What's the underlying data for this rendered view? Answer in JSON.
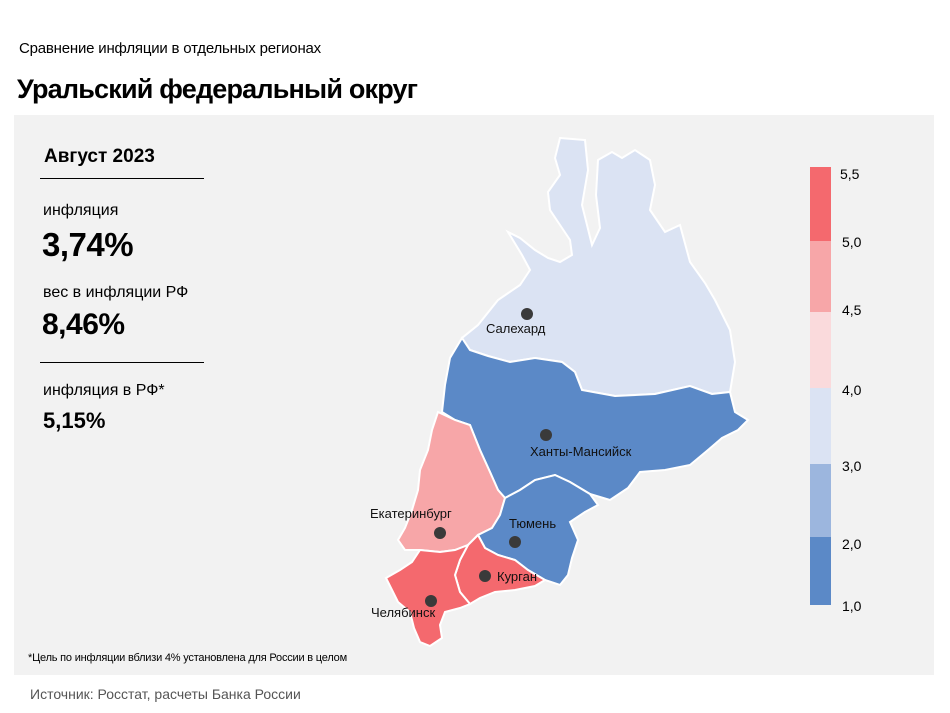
{
  "header": {
    "subtitle": "Сравнение инфляции в отдельных регионах",
    "title": "Уральский федеральный округ"
  },
  "summary": {
    "period": "Август 2023",
    "inflation_label": "инфляция",
    "inflation_value": "3,74%",
    "weight_label": "вес в инфляции РФ",
    "weight_value": "8,46%",
    "rf_label": "инфляция в РФ*",
    "rf_value": "5,15%"
  },
  "cities": {
    "salekhard": "Салехард",
    "khanty": "Ханты-Мансийск",
    "yekaterinburg": "Екатеринбург",
    "tyumen": "Тюмень",
    "kurgan": "Курган",
    "chelyabinsk": "Челябинск"
  },
  "legend": {
    "ticks": [
      "5,5",
      "5,0",
      "4,5",
      "4,0",
      "3,0",
      "2,0",
      "1,0"
    ],
    "colors": {
      "r5_0_5_5": "#f4696e",
      "r4_5_5_0": "#f7a6a8",
      "r4_0_4_5": "#fadadc",
      "r3_0_4_0": "#dbe3f3",
      "r2_0_3_0": "#9cb6de",
      "r1_0_2_0": "#5b89c7"
    }
  },
  "footnote": "*Цель по инфляции вблизи 4% установлена для России в целом",
  "source": "Источник: Росстат, расчеты Банка России"
}
